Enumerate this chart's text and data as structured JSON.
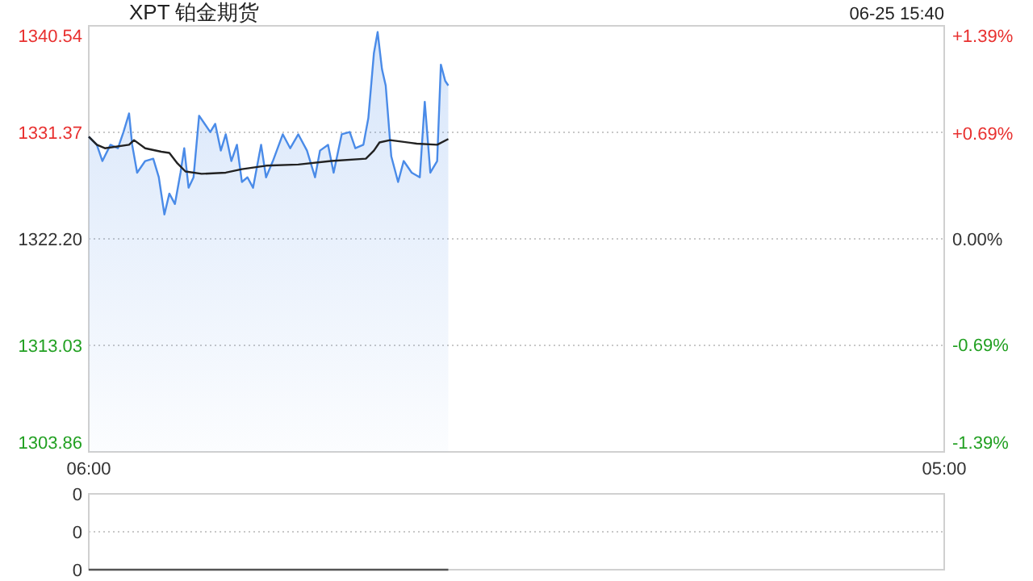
{
  "chart_data": [
    {
      "type": "area",
      "title": "XPT 铂金期货",
      "annotations": [
        "06-25 15:40"
      ],
      "xlim": [
        "--06-25T06:00",
        "--06-26T05:00"
      ],
      "xticks": [
        {
          "value": "--06-25T06:00",
          "label": "06:00"
        },
        {
          "value": "--06-26T05:00",
          "label": "05:00"
        }
      ],
      "ylim": [
        1303.86,
        1340.54
      ],
      "yticks": [
        1303.86,
        1313.03,
        {
          "value": 1322.2,
          "label": "1322.20"
        },
        1331.37,
        1340.54
      ],
      "y2lim": [
        -1.39,
        1.39
      ],
      "y2ticks": [
        {
          "value": -1.39,
          "label": "-1.39%"
        },
        {
          "value": -0.69,
          "label": "-0.69%"
        },
        {
          "value": 0,
          "label": "0.00%"
        },
        {
          "value": 0.69,
          "label": "+0.69%"
        },
        {
          "value": 1.39,
          "label": "+1.39%"
        }
      ],
      "grid": "y",
      "marker": "none",
      "series": [
        {
          "color": "#4a8be8",
          "x": [
            "--06-25T06:00",
            "--06-25T06:13",
            "--06-25T06:22",
            "--06-25T06:35",
            "--06-25T06:47",
            "--06-25T06:56",
            "--06-25T07:05",
            "--06-25T07:10",
            "--06-25T07:18",
            "--06-25T07:31",
            "--06-25T07:44",
            "--06-25T07:53",
            "--06-25T08:02",
            "--06-25T08:10",
            "--06-25T08:19",
            "--06-25T08:28",
            "--06-25T08:34",
            "--06-25T08:41",
            "--06-25T08:49",
            "--06-25T08:58",
            "--06-25T09:07",
            "--06-25T09:16",
            "--06-25T09:24",
            "--06-25T09:33",
            "--06-25T09:41",
            "--06-25T09:50",
            "--06-25T09:59",
            "--06-25T10:07",
            "--06-25T10:16",
            "--06-25T10:25",
            "--06-25T10:38",
            "--06-25T10:46",
            "--06-25T10:57",
            "--06-25T11:13",
            "--06-25T11:25",
            "--06-25T11:38",
            "--06-25T11:52",
            "--06-25T12:05",
            "--06-25T12:13",
            "--06-25T12:26",
            "--06-25T12:35",
            "--06-25T12:48",
            "--06-25T13:01",
            "--06-25T13:10",
            "--06-25T13:23",
            "--06-25T13:31",
            "--06-25T13:40",
            "--06-25T13:46",
            "--06-25T13:53",
            "--06-25T13:59",
            "--06-25T14:08",
            "--06-25T14:19",
            "--06-25T14:28",
            "--06-25T14:41",
            "--06-25T14:54",
            "--06-25T15:02",
            "--06-25T15:11",
            "--06-25T15:22",
            "--06-25T15:28",
            "--06-25T15:35",
            "--06-25T15:40"
          ],
          "values": [
            1331.0,
            1330.3,
            1328.9,
            1330.3,
            1330.0,
            1331.4,
            1333.0,
            1330.3,
            1327.9,
            1328.9,
            1329.1,
            1327.5,
            1324.3,
            1326.1,
            1325.2,
            1327.9,
            1330.0,
            1326.6,
            1327.5,
            1332.8,
            1332.1,
            1331.4,
            1332.1,
            1329.8,
            1331.2,
            1328.9,
            1330.3,
            1327.1,
            1327.5,
            1326.6,
            1330.3,
            1327.5,
            1328.9,
            1331.2,
            1330.0,
            1331.2,
            1329.8,
            1327.5,
            1329.8,
            1330.3,
            1327.9,
            1331.2,
            1331.4,
            1330.0,
            1330.3,
            1332.6,
            1338.2,
            1340.0,
            1336.8,
            1335.4,
            1329.3,
            1327.1,
            1328.9,
            1327.9,
            1327.5,
            1334.0,
            1327.9,
            1328.9,
            1337.2,
            1335.8,
            1335.4
          ]
        },
        {
          "type": "line",
          "color": "#222222",
          "x": [
            "--06-25T06:00",
            "--06-25T06:13",
            "--06-25T06:26",
            "--06-25T07:05",
            "--06-25T07:13",
            "--06-25T07:31",
            "--06-25T07:57",
            "--06-25T08:10",
            "--06-25T08:23",
            "--06-25T08:36",
            "--06-25T09:02",
            "--06-25T09:41",
            "--06-25T10:07",
            "--06-25T10:46",
            "--06-25T11:38",
            "--06-25T12:31",
            "--06-25T13:27",
            "--06-25T13:40",
            "--06-25T13:49",
            "--06-25T14:06",
            "--06-25T14:49",
            "--06-25T15:22",
            "--06-25T15:40"
          ],
          "values": [
            1331.0,
            1330.3,
            1330.0,
            1330.3,
            1330.7,
            1330.0,
            1329.7,
            1329.6,
            1328.7,
            1328.0,
            1327.8,
            1327.9,
            1328.2,
            1328.5,
            1328.6,
            1328.9,
            1329.1,
            1329.8,
            1330.5,
            1330.7,
            1330.4,
            1330.3,
            1330.8
          ]
        }
      ]
    },
    {
      "type": "line",
      "xlim": [
        "--06-25T06:00",
        "--06-26T05:00"
      ],
      "ylim": [
        0,
        0.4
      ],
      "yticks": [
        0,
        {
          "value": 0.2,
          "label": "0"
        },
        {
          "value": 0.4,
          "label": "0"
        }
      ],
      "grid": "y",
      "tick_labels": "y",
      "marker": "none",
      "series": [
        {
          "color": "#555555",
          "x": [
            "--06-25T06:00",
            "--06-25T15:40"
          ],
          "values": [
            0,
            0
          ]
        }
      ]
    }
  ]
}
